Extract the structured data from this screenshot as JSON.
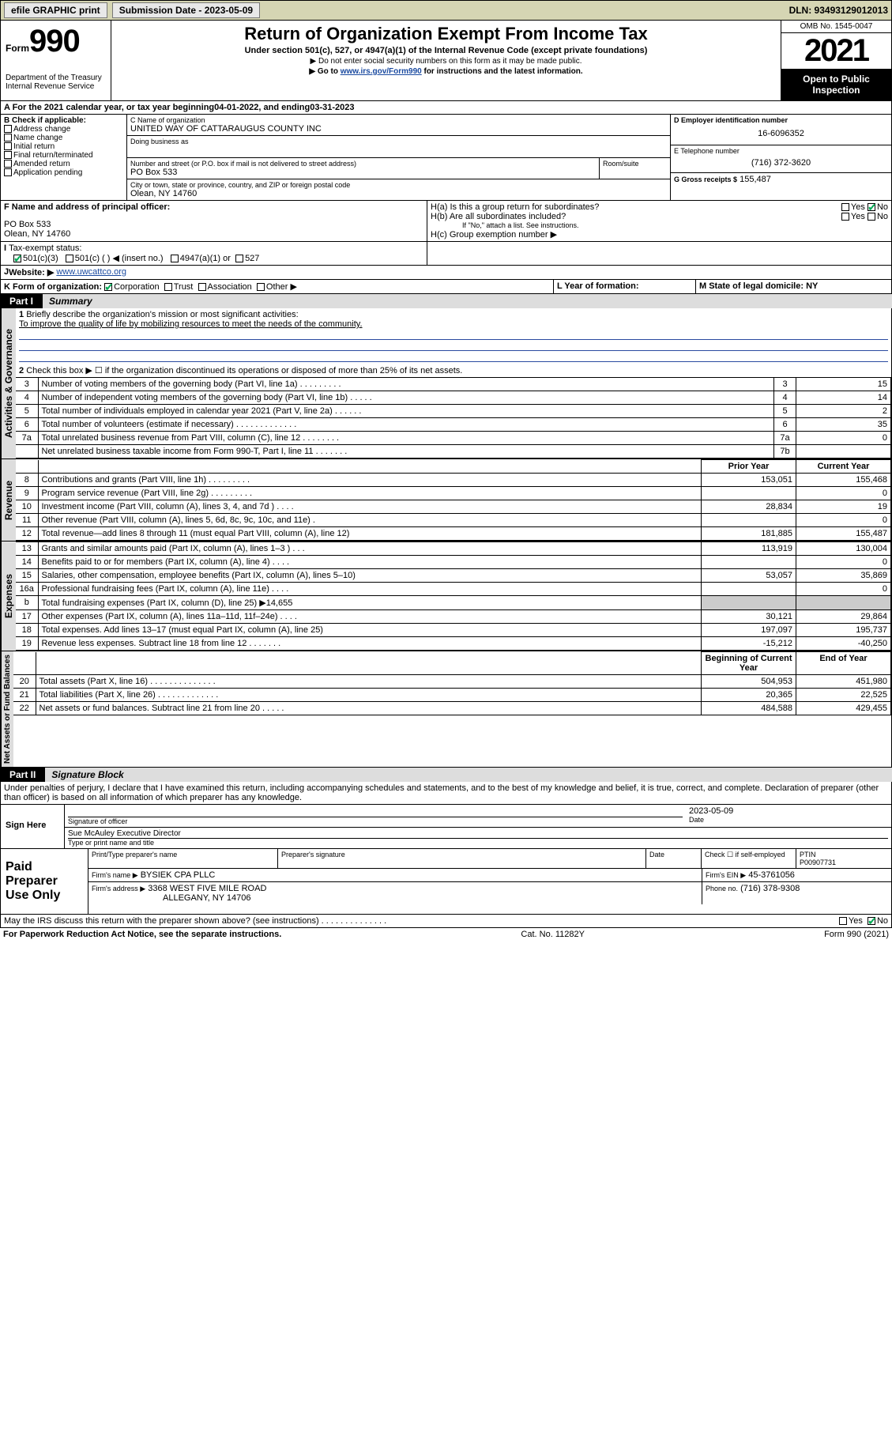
{
  "topbar": {
    "efile": "efile GRAPHIC print",
    "submission_label": "Submission Date - 2023-05-09",
    "dln": "DLN: 93493129012013"
  },
  "header": {
    "form_prefix": "Form",
    "form_number": "990",
    "dept": "Department of the Treasury",
    "irs": "Internal Revenue Service",
    "title": "Return of Organization Exempt From Income Tax",
    "subtitle": "Under section 501(c), 527, or 4947(a)(1) of the Internal Revenue Code (except private foundations)",
    "note1": "▶ Do not enter social security numbers on this form as it may be made public.",
    "note2_prefix": "▶ Go to ",
    "note2_link": "www.irs.gov/Form990",
    "note2_suffix": " for instructions and the latest information.",
    "omb": "OMB No. 1545-0047",
    "year": "2021",
    "open": "Open to Public Inspection"
  },
  "period": {
    "text_a": "A For the 2021 calendar year, or tax year beginning ",
    "begin": "04-01-2022",
    "text_b": " , and ending ",
    "end": "03-31-2023"
  },
  "boxB": {
    "label": "B Check if applicable:",
    "opts": [
      "Address change",
      "Name change",
      "Initial return",
      "Final return/terminated",
      "Amended return",
      "Application pending"
    ]
  },
  "boxC": {
    "name_label": "C Name of organization",
    "name": "UNITED WAY OF CATTARAUGUS COUNTY INC",
    "dba_label": "Doing business as",
    "addr_label": "Number and street (or P.O. box if mail is not delivered to street address)",
    "room_label": "Room/suite",
    "addr": "PO Box 533",
    "city_label": "City or town, state or province, country, and ZIP or foreign postal code",
    "city": "Olean, NY  14760"
  },
  "boxD": {
    "label": "D Employer identification number",
    "value": "16-6096352"
  },
  "boxE": {
    "label": "E Telephone number",
    "value": "(716) 372-3620"
  },
  "boxG": {
    "label": "G Gross receipts $",
    "value": "155,487"
  },
  "boxF": {
    "label": "F Name and address of principal officer:",
    "line1": "PO Box 533",
    "line2": "Olean, NY  14760"
  },
  "boxH": {
    "ha": "H(a)  Is this a group return for subordinates?",
    "hb": "H(b)  Are all subordinates included?",
    "hb_note": "If \"No,\" attach a list. See instructions.",
    "hc": "H(c)  Group exemption number ▶"
  },
  "boxI": {
    "label": "Tax-exempt status:",
    "o1": "501(c)(3)",
    "o2": "501(c) (   ) ◀ (insert no.)",
    "o3": "4947(a)(1) or",
    "o4": "527"
  },
  "boxJ": {
    "label": "Website: ▶",
    "value": "www.uwcattco.org"
  },
  "boxK": {
    "label": "K Form of organization:",
    "opts": [
      "Corporation",
      "Trust",
      "Association",
      "Other ▶"
    ]
  },
  "boxL": {
    "label": "L Year of formation:"
  },
  "boxM": {
    "label": "M State of legal domicile: NY"
  },
  "part1": {
    "label": "Part I",
    "title": "Summary",
    "side_ag": "Activities & Governance",
    "side_rev": "Revenue",
    "side_exp": "Expenses",
    "side_na": "Net Assets or Fund Balances",
    "q1": "Briefly describe the organization's mission or most significant activities:",
    "q1_ans": "To improve the quality of life by mobilizing resources to meet the needs of the community.",
    "q2": "Check this box ▶ ☐ if the organization discontinued its operations or disposed of more than 25% of its net assets.",
    "rows_ag": [
      {
        "n": "3",
        "t": "Number of voting members of the governing body (Part VI, line 1a)   .    .    .    .    .    .    .    .    .",
        "box": "3",
        "v": "15"
      },
      {
        "n": "4",
        "t": "Number of independent voting members of the governing body (Part VI, line 1b)   .    .    .    .    .",
        "box": "4",
        "v": "14"
      },
      {
        "n": "5",
        "t": "Total number of individuals employed in calendar year 2021 (Part V, line 2a)   .    .    .    .    .    .",
        "box": "5",
        "v": "2"
      },
      {
        "n": "6",
        "t": "Total number of volunteers (estimate if necessary)   .    .    .    .    .    .    .    .    .    .    .    .    .",
        "box": "6",
        "v": "35"
      },
      {
        "n": "7a",
        "t": "Total unrelated business revenue from Part VIII, column (C), line 12   .    .    .    .    .    .    .    .",
        "box": "7a",
        "v": "0"
      },
      {
        "n": "",
        "t": "Net unrelated business taxable income from Form 990-T, Part I, line 11   .    .    .    .    .    .    .",
        "box": "7b",
        "v": ""
      }
    ],
    "col_prior": "Prior Year",
    "col_curr": "Current Year",
    "rows_rev": [
      {
        "n": "8",
        "t": "Contributions and grants (Part VIII, line 1h)   .    .    .    .    .    .    .    .    .",
        "p": "153,051",
        "c": "155,468"
      },
      {
        "n": "9",
        "t": "Program service revenue (Part VIII, line 2g)   .    .    .    .    .    .    .    .    .",
        "p": "",
        "c": "0"
      },
      {
        "n": "10",
        "t": "Investment income (Part VIII, column (A), lines 3, 4, and 7d )   .    .    .    .",
        "p": "28,834",
        "c": "19"
      },
      {
        "n": "11",
        "t": "Other revenue (Part VIII, column (A), lines 5, 6d, 8c, 9c, 10c, and 11e)   .",
        "p": "",
        "c": "0"
      },
      {
        "n": "12",
        "t": "Total revenue—add lines 8 through 11 (must equal Part VIII, column (A), line 12)",
        "p": "181,885",
        "c": "155,487"
      }
    ],
    "rows_exp": [
      {
        "n": "13",
        "t": "Grants and similar amounts paid (Part IX, column (A), lines 1–3 )   .    .    .",
        "p": "113,919",
        "c": "130,004"
      },
      {
        "n": "14",
        "t": "Benefits paid to or for members (Part IX, column (A), line 4)   .    .    .    .",
        "p": "",
        "c": "0"
      },
      {
        "n": "15",
        "t": "Salaries, other compensation, employee benefits (Part IX, column (A), lines 5–10)",
        "p": "53,057",
        "c": "35,869"
      },
      {
        "n": "16a",
        "t": "Professional fundraising fees (Part IX, column (A), line 11e)   .    .    .    .",
        "p": "",
        "c": "0"
      },
      {
        "n": "b",
        "t": "Total fundraising expenses (Part IX, column (D), line 25) ▶14,655",
        "p": "SHADE",
        "c": "SHADE"
      },
      {
        "n": "17",
        "t": "Other expenses (Part IX, column (A), lines 11a–11d, 11f–24e)   .    .    .    .",
        "p": "30,121",
        "c": "29,864"
      },
      {
        "n": "18",
        "t": "Total expenses. Add lines 13–17 (must equal Part IX, column (A), line 25)",
        "p": "197,097",
        "c": "195,737"
      },
      {
        "n": "19",
        "t": "Revenue less expenses. Subtract line 18 from line 12   .    .    .    .    .    .    .",
        "p": "-15,212",
        "c": "-40,250"
      }
    ],
    "col_beg": "Beginning of Current Year",
    "col_end": "End of Year",
    "rows_na": [
      {
        "n": "20",
        "t": "Total assets (Part X, line 16)   .    .    .    .    .    .    .    .    .    .    .    .    .    .",
        "p": "504,953",
        "c": "451,980"
      },
      {
        "n": "21",
        "t": "Total liabilities (Part X, line 26)   .    .    .    .    .    .    .    .    .    .    .    .    .",
        "p": "20,365",
        "c": "22,525"
      },
      {
        "n": "22",
        "t": "Net assets or fund balances. Subtract line 21 from line 20   .    .    .    .    .",
        "p": "484,588",
        "c": "429,455"
      }
    ]
  },
  "part2": {
    "label": "Part II",
    "title": "Signature Block",
    "decl": "Under penalties of perjury, I declare that I have examined this return, including accompanying schedules and statements, and to the best of my knowledge and belief, it is true, correct, and complete. Declaration of preparer (other than officer) is based on all information of which preparer has any knowledge.",
    "sign_here": "Sign Here",
    "sig_officer": "Signature of officer",
    "sig_date_v": "2023-05-09",
    "sig_date": "Date",
    "officer_name": "Sue McAuley  Executive Director",
    "type_name": "Type or print name and title",
    "paid": "Paid Preparer Use Only",
    "prep_name_l": "Print/Type preparer's name",
    "prep_sig_l": "Preparer's signature",
    "date_l": "Date",
    "check_l": "Check ☐ if self-employed",
    "ptin_l": "PTIN",
    "ptin_v": "P00907731",
    "firm_name_l": "Firm's name    ▶",
    "firm_name": "BYSIEK CPA PLLC",
    "firm_ein_l": "Firm's EIN ▶",
    "firm_ein": "45-3761056",
    "firm_addr_l": "Firm's address ▶",
    "firm_addr1": "3368 WEST FIVE MILE ROAD",
    "firm_addr2": "ALLEGANY, NY  14706",
    "firm_phone_l": "Phone no.",
    "firm_phone": "(716) 378-9308",
    "discuss": "May the IRS discuss this return with the preparer shown above? (see instructions)   .    .    .    .    .    .    .    .    .    .    .    .    .    ."
  },
  "footer": {
    "left": "For Paperwork Reduction Act Notice, see the separate instructions.",
    "mid": "Cat. No. 11282Y",
    "right": "Form 990 (2021)"
  }
}
